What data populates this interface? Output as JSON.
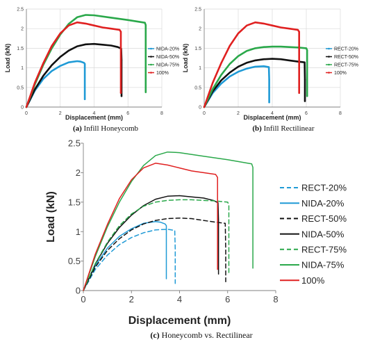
{
  "chart_data": [
    {
      "type": "line",
      "caption_letter": "(a)",
      "caption_text": "Infill Honeycomb",
      "xlabel": "Displacement (mm)",
      "ylabel": "Load (kN)",
      "xlim": [
        0,
        8
      ],
      "ylim": [
        0,
        2.5
      ],
      "x_ticks": [
        "0",
        "2",
        "4",
        "6",
        "8"
      ],
      "y_ticks": [
        "0",
        "0.5",
        "1",
        "1.5",
        "2",
        "2.5"
      ],
      "grid": true,
      "legend_position": "right",
      "series": [
        {
          "name": "NIDA-20%",
          "color": "#1f9ad6",
          "dash": "",
          "points": [
            [
              0,
              0
            ],
            [
              0.5,
              0.42
            ],
            [
              1,
              0.72
            ],
            [
              1.5,
              0.92
            ],
            [
              2,
              1.05
            ],
            [
              2.5,
              1.14
            ],
            [
              3,
              1.17
            ],
            [
              3.2,
              1.16
            ],
            [
              3.4,
              1.13
            ],
            [
              3.45,
              1.1
            ],
            [
              3.45,
              0.2
            ]
          ]
        },
        {
          "name": "NIDA-50%",
          "color": "#111111",
          "dash": "",
          "points": [
            [
              0,
              0
            ],
            [
              0.5,
              0.45
            ],
            [
              1,
              0.8
            ],
            [
              1.5,
              1.07
            ],
            [
              2,
              1.28
            ],
            [
              2.5,
              1.44
            ],
            [
              3,
              1.55
            ],
            [
              3.5,
              1.6
            ],
            [
              4,
              1.61
            ],
            [
              4.5,
              1.59
            ],
            [
              5,
              1.57
            ],
            [
              5.4,
              1.53
            ],
            [
              5.6,
              1.49
            ],
            [
              5.62,
              1.2
            ],
            [
              5.62,
              0.28
            ]
          ]
        },
        {
          "name": "NIDA-75%",
          "color": "#2aa84a",
          "dash": "",
          "points": [
            [
              0,
              0
            ],
            [
              0.5,
              0.58
            ],
            [
              1,
              1.08
            ],
            [
              1.5,
              1.5
            ],
            [
              2,
              1.85
            ],
            [
              2.5,
              2.12
            ],
            [
              3,
              2.29
            ],
            [
              3.5,
              2.35
            ],
            [
              4,
              2.34
            ],
            [
              5,
              2.28
            ],
            [
              6,
              2.22
            ],
            [
              7,
              2.15
            ],
            [
              7.05,
              2.09
            ],
            [
              7.05,
              0.38
            ]
          ]
        },
        {
          "name": "100%",
          "color": "#e02020",
          "dash": "",
          "points": [
            [
              0,
              0
            ],
            [
              0.5,
              0.62
            ],
            [
              1,
              1.12
            ],
            [
              1.5,
              1.56
            ],
            [
              2,
              1.88
            ],
            [
              2.5,
              2.08
            ],
            [
              3,
              2.16
            ],
            [
              3.5,
              2.13
            ],
            [
              4,
              2.08
            ],
            [
              4.5,
              2.03
            ],
            [
              5,
              2.0
            ],
            [
              5.5,
              1.97
            ],
            [
              5.58,
              1.92
            ],
            [
              5.58,
              0.36
            ]
          ]
        }
      ]
    },
    {
      "type": "line",
      "caption_letter": "(b)",
      "caption_text": "Infill Rectilinear",
      "xlabel": "Displacement (mm)",
      "ylabel": "Load (kN)",
      "xlim": [
        0,
        8
      ],
      "ylim": [
        0,
        2.5
      ],
      "x_ticks": [
        "0",
        "2",
        "4",
        "6",
        "8"
      ],
      "y_ticks": [
        "0",
        "0.5",
        "1",
        "1.5",
        "2",
        "2.5"
      ],
      "grid": true,
      "legend_position": "right",
      "series": [
        {
          "name": "RECT-20%",
          "color": "#1f9ad6",
          "dash": "",
          "points": [
            [
              0,
              0
            ],
            [
              0.5,
              0.36
            ],
            [
              1,
              0.6
            ],
            [
              1.5,
              0.78
            ],
            [
              2,
              0.9
            ],
            [
              2.5,
              0.98
            ],
            [
              3,
              1.03
            ],
            [
              3.5,
              1.04
            ],
            [
              3.8,
              1.02
            ],
            [
              3.82,
              0.7
            ],
            [
              3.82,
              0.12
            ]
          ]
        },
        {
          "name": "RECT-50%",
          "color": "#111111",
          "dash": "",
          "points": [
            [
              0,
              0
            ],
            [
              0.5,
              0.4
            ],
            [
              1,
              0.68
            ],
            [
              1.5,
              0.88
            ],
            [
              2,
              1.03
            ],
            [
              2.5,
              1.13
            ],
            [
              3,
              1.19
            ],
            [
              3.5,
              1.22
            ],
            [
              4,
              1.23
            ],
            [
              4.5,
              1.22
            ],
            [
              5,
              1.19
            ],
            [
              5.5,
              1.16
            ],
            [
              5.9,
              1.14
            ],
            [
              5.92,
              0.7
            ],
            [
              5.92,
              0.15
            ]
          ]
        },
        {
          "name": "RECT-75%",
          "color": "#2aa84a",
          "dash": "",
          "points": [
            [
              0,
              0
            ],
            [
              0.5,
              0.46
            ],
            [
              1,
              0.82
            ],
            [
              1.5,
              1.1
            ],
            [
              2,
              1.3
            ],
            [
              2.5,
              1.43
            ],
            [
              3,
              1.5
            ],
            [
              3.5,
              1.53
            ],
            [
              4,
              1.54
            ],
            [
              4.5,
              1.54
            ],
            [
              5,
              1.53
            ],
            [
              5.5,
              1.52
            ],
            [
              6,
              1.5
            ],
            [
              6.05,
              1.45
            ],
            [
              6.05,
              0.28
            ]
          ]
        },
        {
          "name": "100%",
          "color": "#e02020",
          "dash": "",
          "points": [
            [
              0,
              0
            ],
            [
              0.5,
              0.62
            ],
            [
              1,
              1.12
            ],
            [
              1.5,
              1.56
            ],
            [
              2,
              1.88
            ],
            [
              2.5,
              2.08
            ],
            [
              3,
              2.16
            ],
            [
              3.5,
              2.13
            ],
            [
              4,
              2.08
            ],
            [
              4.5,
              2.03
            ],
            [
              5,
              2.0
            ],
            [
              5.5,
              1.97
            ],
            [
              5.58,
              1.92
            ],
            [
              5.58,
              0.36
            ]
          ]
        }
      ]
    },
    {
      "type": "line",
      "caption_letter": "(c)",
      "caption_text": "Honeycomb vs. Rectilinear",
      "xlabel": "Displacement (mm)",
      "ylabel": "Load (kN)",
      "xlim": [
        0,
        8
      ],
      "ylim": [
        0,
        2.5
      ],
      "x_ticks": [
        "0",
        "2",
        "4",
        "6",
        "8"
      ],
      "y_ticks": [
        "0",
        "0.5",
        "1",
        "1.5",
        "2",
        "2.5"
      ],
      "grid": false,
      "legend_position": "right",
      "series": [
        {
          "name": "RECT-20%",
          "color": "#1f9ad6",
          "dash": "6,4",
          "points": [
            [
              0,
              0
            ],
            [
              0.5,
              0.36
            ],
            [
              1,
              0.6
            ],
            [
              1.5,
              0.78
            ],
            [
              2,
              0.9
            ],
            [
              2.5,
              0.98
            ],
            [
              3,
              1.03
            ],
            [
              3.5,
              1.04
            ],
            [
              3.8,
              1.02
            ],
            [
              3.82,
              0.7
            ],
            [
              3.82,
              0.12
            ]
          ]
        },
        {
          "name": "NIDA-20%",
          "color": "#1f9ad6",
          "dash": "",
          "points": [
            [
              0,
              0
            ],
            [
              0.5,
              0.42
            ],
            [
              1,
              0.72
            ],
            [
              1.5,
              0.92
            ],
            [
              2,
              1.05
            ],
            [
              2.5,
              1.14
            ],
            [
              3,
              1.17
            ],
            [
              3.2,
              1.16
            ],
            [
              3.4,
              1.13
            ],
            [
              3.45,
              1.1
            ],
            [
              3.45,
              0.2
            ]
          ]
        },
        {
          "name": "RECT-50%",
          "color": "#111111",
          "dash": "6,4",
          "points": [
            [
              0,
              0
            ],
            [
              0.5,
              0.4
            ],
            [
              1,
              0.68
            ],
            [
              1.5,
              0.88
            ],
            [
              2,
              1.03
            ],
            [
              2.5,
              1.13
            ],
            [
              3,
              1.19
            ],
            [
              3.5,
              1.22
            ],
            [
              4,
              1.23
            ],
            [
              4.5,
              1.22
            ],
            [
              5,
              1.19
            ],
            [
              5.5,
              1.16
            ],
            [
              5.9,
              1.14
            ],
            [
              5.92,
              0.7
            ],
            [
              5.92,
              0.15
            ]
          ]
        },
        {
          "name": "NIDA-50%",
          "color": "#111111",
          "dash": "",
          "points": [
            [
              0,
              0
            ],
            [
              0.5,
              0.45
            ],
            [
              1,
              0.8
            ],
            [
              1.5,
              1.07
            ],
            [
              2,
              1.28
            ],
            [
              2.5,
              1.44
            ],
            [
              3,
              1.55
            ],
            [
              3.5,
              1.6
            ],
            [
              4,
              1.61
            ],
            [
              4.5,
              1.59
            ],
            [
              5,
              1.57
            ],
            [
              5.4,
              1.53
            ],
            [
              5.6,
              1.49
            ],
            [
              5.62,
              1.2
            ],
            [
              5.62,
              0.28
            ]
          ]
        },
        {
          "name": "RECT-75%",
          "color": "#2aa84a",
          "dash": "6,4",
          "points": [
            [
              0,
              0
            ],
            [
              0.5,
              0.46
            ],
            [
              1,
              0.82
            ],
            [
              1.5,
              1.1
            ],
            [
              2,
              1.3
            ],
            [
              2.5,
              1.43
            ],
            [
              3,
              1.5
            ],
            [
              3.5,
              1.53
            ],
            [
              4,
              1.54
            ],
            [
              4.5,
              1.54
            ],
            [
              5,
              1.53
            ],
            [
              5.5,
              1.52
            ],
            [
              6,
              1.5
            ],
            [
              6.05,
              1.45
            ],
            [
              6.05,
              0.28
            ]
          ]
        },
        {
          "name": "NIDA-75%",
          "color": "#2aa84a",
          "dash": "",
          "points": [
            [
              0,
              0
            ],
            [
              0.5,
              0.58
            ],
            [
              1,
              1.08
            ],
            [
              1.5,
              1.5
            ],
            [
              2,
              1.85
            ],
            [
              2.5,
              2.12
            ],
            [
              3,
              2.29
            ],
            [
              3.5,
              2.35
            ],
            [
              4,
              2.34
            ],
            [
              5,
              2.28
            ],
            [
              6,
              2.22
            ],
            [
              7,
              2.15
            ],
            [
              7.05,
              2.09
            ],
            [
              7.05,
              0.38
            ]
          ]
        },
        {
          "name": "100%",
          "color": "#e02020",
          "dash": "",
          "points": [
            [
              0,
              0
            ],
            [
              0.5,
              0.62
            ],
            [
              1,
              1.12
            ],
            [
              1.5,
              1.56
            ],
            [
              2,
              1.88
            ],
            [
              2.5,
              2.08
            ],
            [
              3,
              2.16
            ],
            [
              3.5,
              2.13
            ],
            [
              4,
              2.08
            ],
            [
              4.5,
              2.03
            ],
            [
              5,
              2.0
            ],
            [
              5.5,
              1.97
            ],
            [
              5.58,
              1.92
            ],
            [
              5.58,
              0.36
            ]
          ]
        }
      ]
    }
  ]
}
